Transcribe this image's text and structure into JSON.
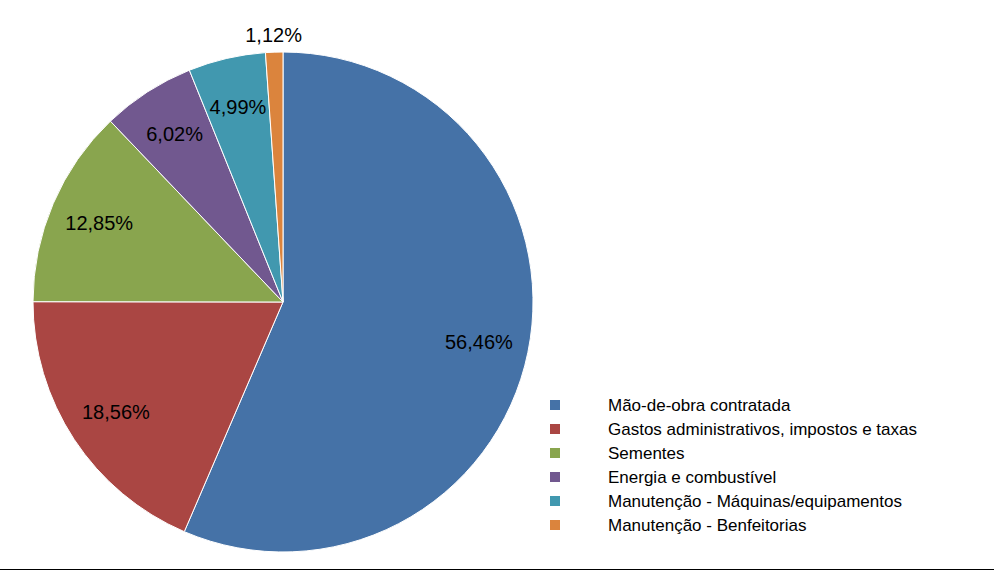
{
  "chart_data": {
    "type": "pie",
    "categories": [
      "Mão-de-obra contratada",
      "Gastos administrativos, impostos e taxas",
      "Sementes",
      "Energia e combustível",
      "Manutenção - Máquinas/equipamentos",
      "Manutenção - Benfeitorias"
    ],
    "values": [
      56.46,
      18.56,
      12.85,
      6.02,
      4.99,
      1.12
    ],
    "value_labels": [
      "56,46%",
      "18,56%",
      "12,85%",
      "6,02%",
      "4,99%",
      "1,12%"
    ],
    "colors": [
      "#4572a7",
      "#aa4643",
      "#89a54e",
      "#71588f",
      "#4198af",
      "#db843d"
    ],
    "data_labels": true,
    "legend": "right"
  }
}
